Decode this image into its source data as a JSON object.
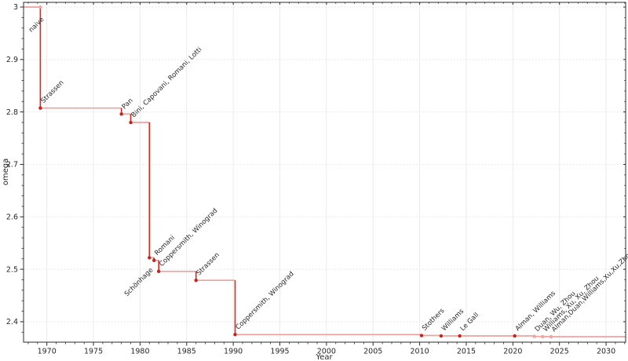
{
  "figure": {
    "background": "#ffffff"
  },
  "chart_data": {
    "type": "line",
    "subtype": "step-post",
    "title": "",
    "xlabel": "Year",
    "ylabel": "omega",
    "xlim": [
      1967.5,
      2032.1
    ],
    "ylim": [
      2.361,
      3.009
    ],
    "x_ticks": [
      1970,
      1975,
      1980,
      1985,
      1990,
      1995,
      2000,
      2005,
      2010,
      2015,
      2020,
      2025,
      2030
    ],
    "y_ticks": [
      {
        "value": 2.4,
        "label": "2.4"
      },
      {
        "value": 2.5,
        "label": "2.5"
      },
      {
        "value": 2.6,
        "label": "2.6"
      },
      {
        "value": 2.7,
        "label": "2.7"
      },
      {
        "value": 2.8,
        "label": "2.8"
      },
      {
        "value": 2.9,
        "label": "2.9"
      },
      {
        "value": 3.0,
        "label": "3"
      }
    ],
    "x_minor_step": 1,
    "y_minor_step": 0.02,
    "grid": {
      "vertical": "solid",
      "horizontal": "dashed"
    },
    "colors": {
      "line_horizontal": "#f0a19b",
      "line_vertical": "#d42a22",
      "marker": "#c62421",
      "marker_muted": "#f2a4a0",
      "label": "#3a3a3a",
      "label_muted": "#a6a6a6",
      "grid_vertical": "#ebebeb",
      "grid_horizontal": "#e2e2e2",
      "spine": "#2b2b2b"
    },
    "points": [
      {
        "x": 1969.3,
        "omega": 3.0,
        "label": "naive",
        "dir": "dl",
        "muted_marker": true,
        "muted_label": false
      },
      {
        "x": 1969.3,
        "omega": 2.8074,
        "label": "Strassen",
        "dir": "ur",
        "muted_marker": false,
        "muted_label": false
      },
      {
        "x": 1978.0,
        "omega": 2.796,
        "label": "Pan",
        "dir": "ur",
        "muted_marker": false,
        "muted_label": false
      },
      {
        "x": 1979.0,
        "omega": 2.78,
        "label": "Bini, Capovani, Romani, Lotti",
        "dir": "ur",
        "muted_marker": false,
        "muted_label": false
      },
      {
        "x": 1981.0,
        "omega": 2.522,
        "label": "Schönhage",
        "dir": "dl",
        "muted_marker": false,
        "muted_label": false
      },
      {
        "x": 1981.5,
        "omega": 2.517,
        "label": "Romani",
        "dir": "ur",
        "muted_marker": false,
        "muted_label": false
      },
      {
        "x": 1982.0,
        "omega": 2.496,
        "label": "Coppersmith, Winograd",
        "dir": "ur",
        "muted_marker": false,
        "muted_label": false
      },
      {
        "x": 1986.0,
        "omega": 2.479,
        "label": "Strassen",
        "dir": "ur",
        "muted_marker": false,
        "muted_label": false
      },
      {
        "x": 1990.2,
        "omega": 2.3755,
        "label": "Coppersmith, Winograd",
        "dir": "ur",
        "muted_marker": false,
        "muted_label": false
      },
      {
        "x": 2010.2,
        "omega": 2.3737,
        "label": "Stothers",
        "dir": "ur",
        "muted_marker": false,
        "muted_label": false
      },
      {
        "x": 2012.3,
        "omega": 2.3729,
        "label": "Williams",
        "dir": "ur",
        "muted_marker": false,
        "muted_label": false
      },
      {
        "x": 2014.3,
        "omega": 2.3729,
        "label": "Le Gall",
        "dir": "ur",
        "muted_marker": false,
        "muted_label": false
      },
      {
        "x": 2020.2,
        "omega": 2.3729,
        "label": "Alman, Williams",
        "dir": "ur",
        "muted_marker": false,
        "muted_label": false
      },
      {
        "x": 2022.3,
        "omega": 2.3719,
        "label": "Duan, Wu, Zhou",
        "dir": "ur",
        "muted_marker": true,
        "muted_label": true
      },
      {
        "x": 2023.2,
        "omega": 2.3716,
        "label": "Williams, Xu, Xu, Zhou",
        "dir": "ur",
        "muted_marker": true,
        "muted_label": true
      },
      {
        "x": 2024.1,
        "omega": 2.3713,
        "label": "Alman,Duan,Williams,Xu,Xu,Zhou",
        "dir": "ur",
        "muted_marker": true,
        "muted_label": true
      }
    ]
  }
}
